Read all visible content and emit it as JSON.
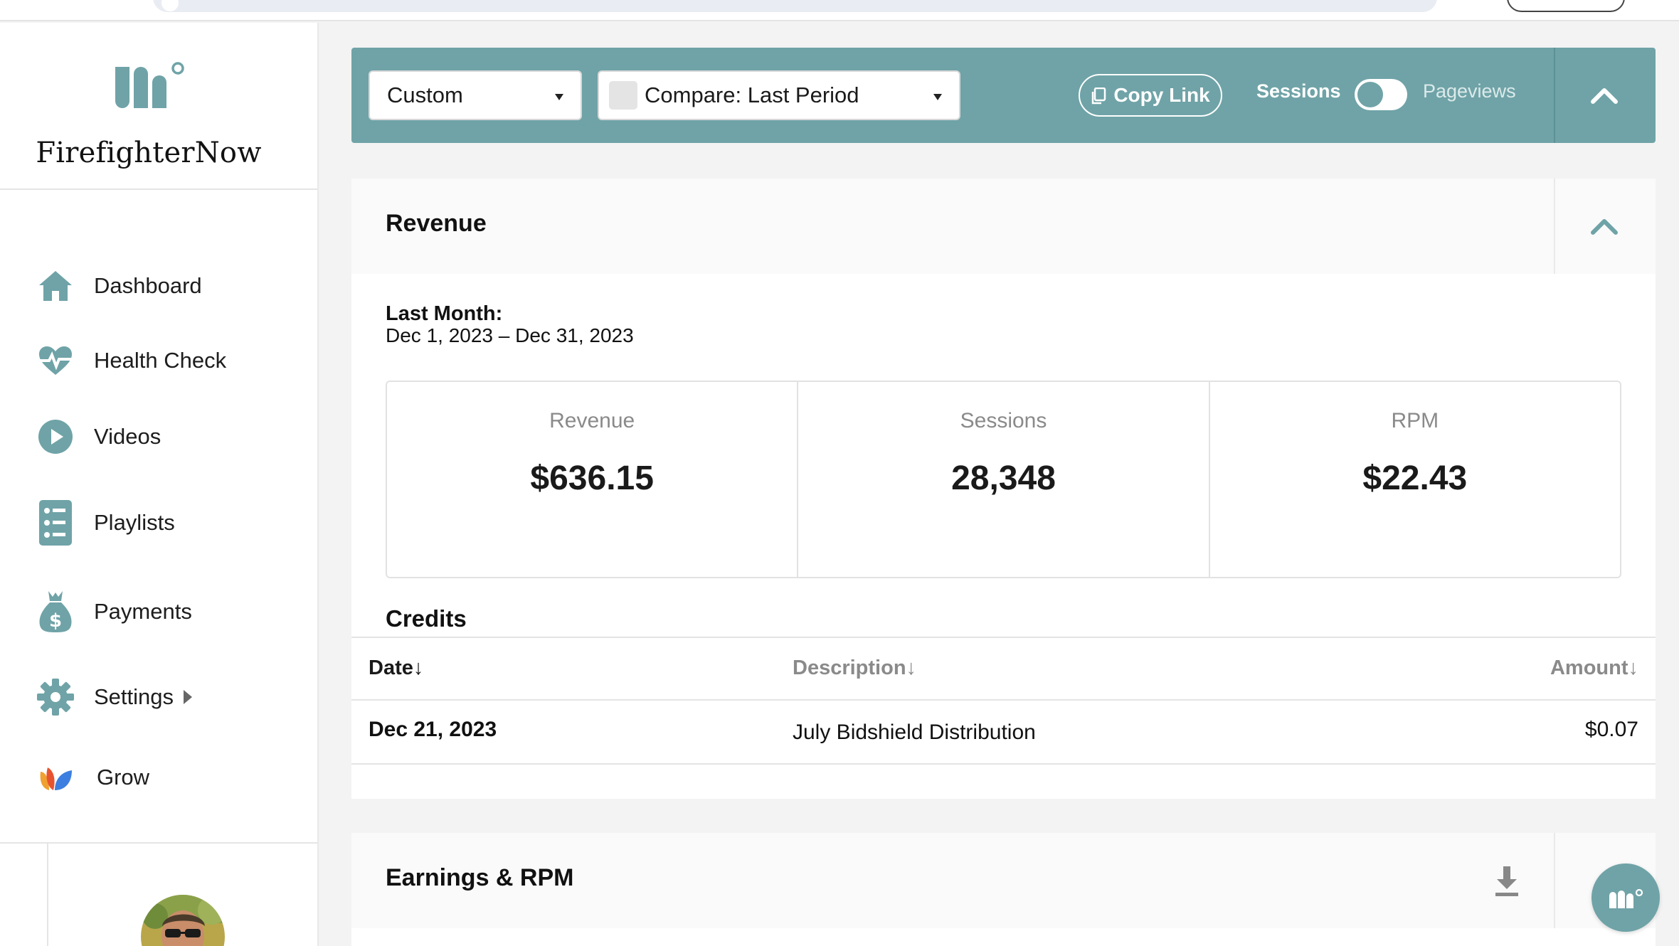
{
  "brand": {
    "name": "FirefighterNow",
    "logo_icon": "mv-logo-icon"
  },
  "nav": {
    "items": [
      {
        "label": "Dashboard",
        "icon": "home-icon"
      },
      {
        "label": "Health Check",
        "icon": "heartbeat-icon"
      },
      {
        "label": "Videos",
        "icon": "play-circle-icon"
      },
      {
        "label": "Playlists",
        "icon": "list-icon"
      },
      {
        "label": "Payments",
        "icon": "money-bag-icon"
      },
      {
        "label": "Settings",
        "icon": "gear-icon"
      },
      {
        "label": "Grow",
        "icon": "grow-logo-icon"
      }
    ]
  },
  "filters": {
    "range_value": "Custom",
    "compare_value": "Compare: Last Period",
    "copy_link_label": "Copy Link",
    "toggle_left": "Sessions",
    "toggle_right": "Pageviews"
  },
  "revenue": {
    "title": "Revenue",
    "period_label": "Last Month:",
    "period_range": "Dec 1, 2023 – Dec 31, 2023",
    "stats": [
      {
        "label": "Revenue",
        "value": "$636.15"
      },
      {
        "label": "Sessions",
        "value": "28,348"
      },
      {
        "label": "RPM",
        "value": "$22.43"
      }
    ],
    "credits_title": "Credits",
    "columns": {
      "date": "Date",
      "description": "Description",
      "amount": "Amount"
    },
    "rows": [
      {
        "date": "Dec 21, 2023",
        "description": "July Bidshield Distribution",
        "amount": "$0.07"
      }
    ]
  },
  "earnings": {
    "title": "Earnings & RPM"
  },
  "colors": {
    "accent": "#6fa3a7",
    "accent_dark": "#5f9094",
    "text": "#1c1c1c"
  }
}
